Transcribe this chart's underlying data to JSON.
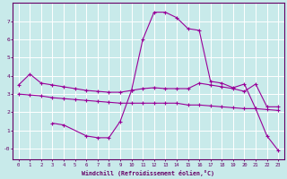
{
  "xlabel": "Windchill (Refroidissement éolien,°C)",
  "bg_color": "#c8eaea",
  "grid_color": "#ffffff",
  "line_color": "#990099",
  "xlim": [
    -0.5,
    23.5
  ],
  "ylim": [
    -0.6,
    8.0
  ],
  "yticks": [
    0,
    1,
    2,
    3,
    4,
    5,
    6,
    7
  ],
  "ytick_labels": [
    "-0",
    "1",
    "2",
    "3",
    "4",
    "5",
    "6",
    "7"
  ],
  "xticks": [
    0,
    1,
    2,
    3,
    4,
    5,
    6,
    7,
    8,
    9,
    10,
    11,
    12,
    13,
    14,
    15,
    16,
    17,
    18,
    19,
    20,
    21,
    22,
    23
  ],
  "line1_x": [
    0,
    1,
    2,
    3,
    4,
    5,
    6,
    7,
    8,
    9,
    10,
    11,
    12,
    13,
    14,
    15,
    16,
    17,
    18,
    19,
    20,
    21,
    22,
    23
  ],
  "line1_y": [
    3.5,
    4.1,
    3.6,
    3.5,
    3.4,
    3.3,
    3.2,
    3.15,
    3.1,
    3.1,
    3.2,
    3.3,
    3.35,
    3.3,
    3.3,
    3.3,
    3.6,
    3.5,
    3.4,
    3.3,
    3.15,
    3.55,
    2.3,
    2.3
  ],
  "line2_x": [
    0,
    1,
    2,
    3,
    4,
    5,
    6,
    7,
    8,
    9,
    10,
    11,
    12,
    13,
    14,
    15,
    16,
    17,
    18,
    19,
    20,
    21,
    22,
    23
  ],
  "line2_y": [
    3.0,
    2.95,
    2.9,
    2.8,
    2.75,
    2.7,
    2.65,
    2.6,
    2.55,
    2.5,
    2.5,
    2.5,
    2.5,
    2.5,
    2.5,
    2.4,
    2.4,
    2.35,
    2.3,
    2.25,
    2.2,
    2.2,
    2.15,
    2.1
  ],
  "line3_x": [
    3,
    4,
    6,
    7,
    8,
    9,
    10,
    11,
    12,
    13,
    14,
    15,
    16,
    17,
    18,
    19,
    20,
    21,
    22,
    23
  ],
  "line3_y": [
    1.4,
    1.3,
    0.7,
    0.6,
    0.6,
    1.5,
    3.2,
    6.0,
    7.5,
    7.5,
    7.2,
    6.6,
    6.5,
    3.7,
    3.6,
    3.35,
    3.55,
    2.2,
    0.7,
    -0.1
  ]
}
